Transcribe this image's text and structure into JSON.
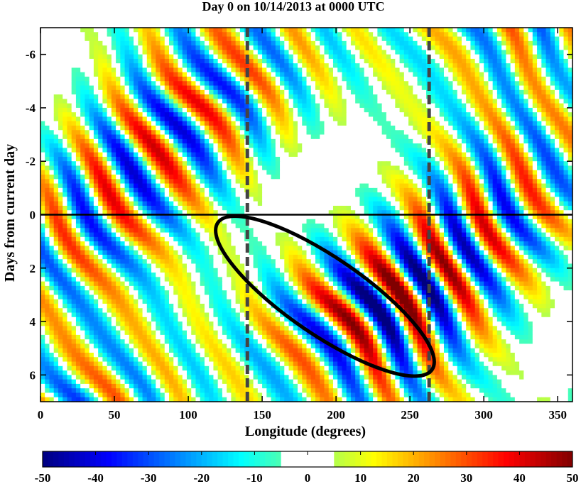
{
  "chart_data": {
    "type": "heatmap",
    "title": "Day 0 on 10/14/2013 at 0000 UTC",
    "xlabel": "Longitude (degrees)",
    "ylabel": "Days from current day",
    "xlim": [
      0,
      360
    ],
    "ylim": [
      -7,
      7
    ],
    "y_reversed": true,
    "x_ticks": [
      0,
      50,
      100,
      150,
      200,
      250,
      300,
      350
    ],
    "y_ticks": [
      -6,
      -4,
      -2,
      0,
      2,
      4,
      6
    ],
    "y_tick_labels": [
      "-6",
      "-4",
      "-2",
      "0",
      "2",
      "4",
      "6"
    ],
    "colorbar": {
      "range": [
        -50,
        50
      ],
      "ticks": [
        -50,
        -40,
        -30,
        -20,
        -10,
        0,
        10,
        20,
        30,
        40,
        50
      ],
      "tick_labels": [
        "-50",
        "-40",
        "-30",
        "-20",
        "-10",
        "0",
        "10",
        "20",
        "30",
        "40",
        "50"
      ],
      "blank_range": [
        -5,
        5
      ],
      "colormap": "jet"
    },
    "pattern": {
      "description_hidden": true,
      "phase_speed_deg_per_day": 12,
      "wavelength_deg": 48,
      "amplitude_max": 45
    },
    "annotations": {
      "reference_line_day": 0,
      "dashed_lines_longitude": [
        140,
        263
      ],
      "ellipse": {
        "center_lon": 205,
        "center_day": 3.0,
        "from": [
          120,
          0.3
        ],
        "to": [
          265,
          5.8
        ]
      }
    }
  }
}
